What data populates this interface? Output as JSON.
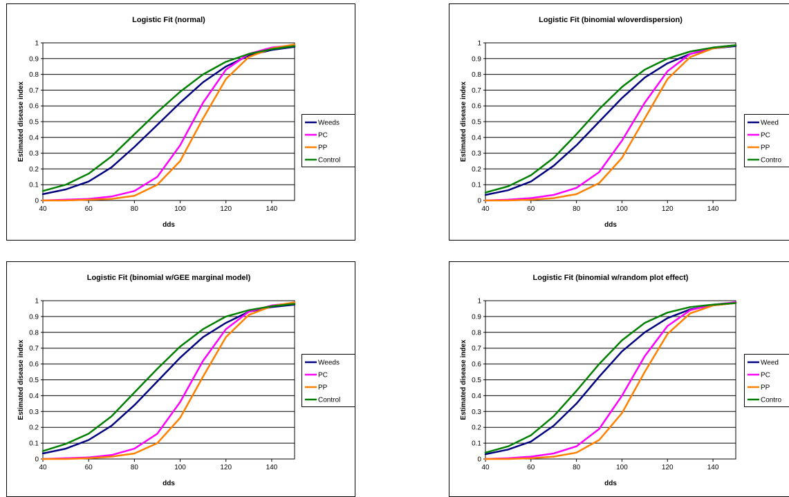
{
  "chart_data": [
    {
      "type": "line",
      "title": "Logistic Fit (normal)",
      "xlabel": "dds",
      "ylabel": "Estimated disease index",
      "xlim": [
        40,
        150
      ],
      "ylim": [
        0,
        1
      ],
      "xticks": [
        40,
        60,
        80,
        100,
        120,
        140
      ],
      "yticks": [
        0,
        0.1,
        0.2,
        0.3,
        0.4,
        0.5,
        0.6,
        0.7,
        0.8,
        0.9,
        1
      ],
      "grid": "horizontal",
      "legend_position": "right",
      "x": [
        40,
        50,
        60,
        70,
        80,
        90,
        100,
        110,
        120,
        130,
        140,
        150
      ],
      "series": [
        {
          "name": "Weeds",
          "color": "#000080",
          "values": [
            0.04,
            0.07,
            0.12,
            0.21,
            0.34,
            0.48,
            0.62,
            0.75,
            0.85,
            0.92,
            0.955,
            0.975
          ]
        },
        {
          "name": "PC",
          "color": "#FF00FF",
          "values": [
            0.0,
            0.005,
            0.01,
            0.025,
            0.06,
            0.15,
            0.35,
            0.62,
            0.83,
            0.93,
            0.97,
            0.985
          ]
        },
        {
          "name": "PP",
          "color": "#FF8000",
          "values": [
            0.0,
            0.0,
            0.005,
            0.01,
            0.03,
            0.1,
            0.25,
            0.52,
            0.77,
            0.91,
            0.965,
            0.99
          ]
        },
        {
          "name": "Control",
          "color": "#008000",
          "values": [
            0.06,
            0.1,
            0.17,
            0.28,
            0.42,
            0.56,
            0.69,
            0.8,
            0.88,
            0.93,
            0.96,
            0.98
          ]
        }
      ]
    },
    {
      "type": "line",
      "title": "Logistic Fit (binomial w/overdispersion)",
      "xlabel": "dds",
      "ylabel": "Estimated disease index",
      "xlim": [
        40,
        150
      ],
      "ylim": [
        0,
        1
      ],
      "xticks": [
        40,
        60,
        80,
        100,
        120,
        140
      ],
      "yticks": [
        0,
        0.1,
        0.2,
        0.3,
        0.4,
        0.5,
        0.6,
        0.7,
        0.8,
        0.9,
        1
      ],
      "grid": "horizontal",
      "legend_position": "right",
      "legend_labels_display": [
        "Weed",
        "PC",
        "PP",
        "Contro"
      ],
      "x": [
        40,
        50,
        60,
        70,
        80,
        90,
        100,
        110,
        120,
        130,
        140,
        150
      ],
      "series": [
        {
          "name": "Weeds",
          "color": "#000080",
          "values": [
            0.035,
            0.065,
            0.12,
            0.22,
            0.35,
            0.5,
            0.65,
            0.78,
            0.87,
            0.93,
            0.965,
            0.98
          ]
        },
        {
          "name": "PC",
          "color": "#FF00FF",
          "values": [
            0.0,
            0.005,
            0.015,
            0.035,
            0.08,
            0.18,
            0.38,
            0.62,
            0.82,
            0.93,
            0.97,
            0.985
          ]
        },
        {
          "name": "PP",
          "color": "#FF8000",
          "values": [
            0.0,
            0.0,
            0.005,
            0.015,
            0.04,
            0.11,
            0.27,
            0.52,
            0.77,
            0.91,
            0.965,
            0.985
          ]
        },
        {
          "name": "Control",
          "color": "#008000",
          "values": [
            0.05,
            0.09,
            0.16,
            0.27,
            0.42,
            0.58,
            0.72,
            0.83,
            0.9,
            0.945,
            0.97,
            0.985
          ]
        }
      ]
    },
    {
      "type": "line",
      "title": "Logistic Fit (binomial w/GEE marginal model)",
      "xlabel": "dds",
      "ylabel": "Estimated disease index",
      "xlim": [
        40,
        150
      ],
      "ylim": [
        0,
        1
      ],
      "xticks": [
        40,
        60,
        80,
        100,
        120,
        140
      ],
      "yticks": [
        0,
        0.1,
        0.2,
        0.3,
        0.4,
        0.5,
        0.6,
        0.7,
        0.8,
        0.9,
        1
      ],
      "grid": "horizontal",
      "legend_position": "right",
      "x": [
        40,
        50,
        60,
        70,
        80,
        90,
        100,
        110,
        120,
        130,
        140,
        150
      ],
      "series": [
        {
          "name": "Weeds",
          "color": "#000080",
          "values": [
            0.035,
            0.065,
            0.12,
            0.21,
            0.34,
            0.49,
            0.64,
            0.77,
            0.86,
            0.93,
            0.96,
            0.975
          ]
        },
        {
          "name": "PC",
          "color": "#FF00FF",
          "values": [
            0.0,
            0.005,
            0.01,
            0.025,
            0.065,
            0.16,
            0.36,
            0.62,
            0.82,
            0.93,
            0.97,
            0.985
          ]
        },
        {
          "name": "PP",
          "color": "#FF8000",
          "values": [
            0.0,
            0.0,
            0.005,
            0.015,
            0.035,
            0.1,
            0.26,
            0.52,
            0.77,
            0.91,
            0.965,
            0.99
          ]
        },
        {
          "name": "Control",
          "color": "#008000",
          "values": [
            0.05,
            0.095,
            0.16,
            0.27,
            0.42,
            0.57,
            0.71,
            0.82,
            0.9,
            0.94,
            0.965,
            0.98
          ]
        }
      ]
    },
    {
      "type": "line",
      "title": "Logistic Fit (binomial w/random plot effect)",
      "xlabel": "dds",
      "ylabel": "Estimated disease index",
      "xlim": [
        40,
        150
      ],
      "ylim": [
        0,
        1
      ],
      "xticks": [
        40,
        60,
        80,
        100,
        120,
        140
      ],
      "yticks": [
        0,
        0.1,
        0.2,
        0.3,
        0.4,
        0.5,
        0.6,
        0.7,
        0.8,
        0.9,
        1
      ],
      "grid": "horizontal",
      "legend_position": "right",
      "legend_labels_display": [
        "Weed",
        "PC",
        "PP",
        "Contro"
      ],
      "x": [
        40,
        50,
        60,
        70,
        80,
        90,
        100,
        110,
        120,
        130,
        140,
        150
      ],
      "series": [
        {
          "name": "Weeds",
          "color": "#000080",
          "values": [
            0.03,
            0.06,
            0.11,
            0.21,
            0.35,
            0.52,
            0.68,
            0.8,
            0.89,
            0.945,
            0.97,
            0.985
          ]
        },
        {
          "name": "PC",
          "color": "#FF00FF",
          "values": [
            0.0,
            0.005,
            0.015,
            0.035,
            0.08,
            0.19,
            0.4,
            0.65,
            0.84,
            0.94,
            0.975,
            0.99
          ]
        },
        {
          "name": "PP",
          "color": "#FF8000",
          "values": [
            0.0,
            0.0,
            0.005,
            0.015,
            0.04,
            0.12,
            0.29,
            0.55,
            0.79,
            0.92,
            0.97,
            0.985
          ]
        },
        {
          "name": "Control",
          "color": "#008000",
          "values": [
            0.04,
            0.08,
            0.15,
            0.27,
            0.43,
            0.6,
            0.75,
            0.86,
            0.925,
            0.96,
            0.975,
            0.985
          ]
        }
      ]
    }
  ]
}
